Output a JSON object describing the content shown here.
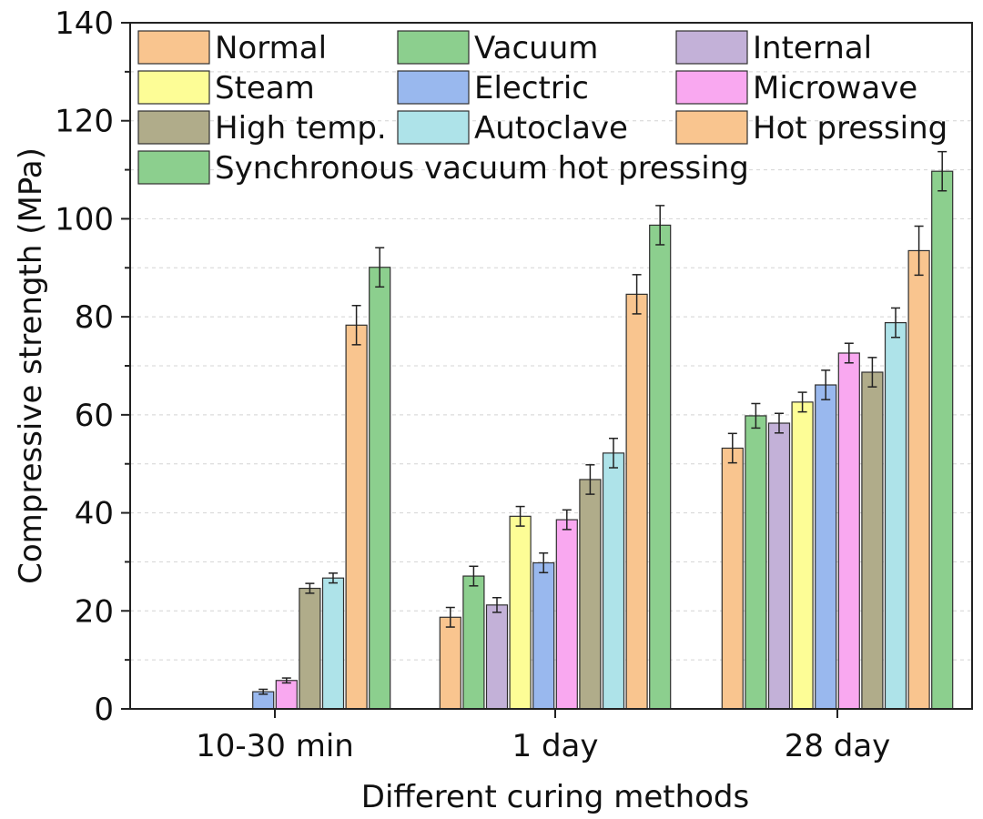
{
  "chart_data": {
    "type": "bar",
    "title": "",
    "xlabel": "Different curing methods",
    "ylabel": "Compressive strength (MPa)",
    "ylim": [
      0,
      140
    ],
    "yticks": [
      0,
      20,
      40,
      60,
      80,
      100,
      120,
      140
    ],
    "grid": "horizontal-dashed",
    "legend_position": "top-left",
    "categories": [
      "10-30 min",
      "1 day",
      "28 day"
    ],
    "series": [
      {
        "name": "Normal",
        "color": "#F9C58F",
        "values": [
          null,
          18.7,
          53.2
        ],
        "errors": [
          null,
          2.0,
          3.0
        ]
      },
      {
        "name": "Vacuum",
        "color": "#8CCF8E",
        "values": [
          null,
          27.1,
          59.8
        ],
        "errors": [
          null,
          2.0,
          2.5
        ]
      },
      {
        "name": "Internal",
        "color": "#C3B1D8",
        "values": [
          null,
          21.2,
          58.3
        ],
        "errors": [
          null,
          1.5,
          2.0
        ]
      },
      {
        "name": "Steam",
        "color": "#FDFD96",
        "values": [
          null,
          39.3,
          62.6
        ],
        "errors": [
          null,
          2.0,
          2.0
        ]
      },
      {
        "name": "Electric",
        "color": "#99B8EE",
        "values": [
          3.5,
          29.8,
          66.1
        ],
        "errors": [
          0.5,
          2.0,
          3.0
        ]
      },
      {
        "name": "Microwave",
        "color": "#F9A8F0",
        "values": [
          5.8,
          38.6,
          72.6
        ],
        "errors": [
          0.5,
          2.0,
          2.0
        ]
      },
      {
        "name": "High temp.",
        "color": "#B0AC8A",
        "values": [
          24.6,
          46.8,
          68.7
        ],
        "errors": [
          1.0,
          3.0,
          3.0
        ]
      },
      {
        "name": "Autoclave",
        "color": "#AEE3E9",
        "values": [
          26.7,
          52.2,
          78.8
        ],
        "errors": [
          1.0,
          3.0,
          3.0
        ]
      },
      {
        "name": "Hot pressing",
        "color": "#F9C58F",
        "values": [
          78.3,
          84.6,
          93.5
        ],
        "errors": [
          4.0,
          4.0,
          5.0
        ]
      },
      {
        "name": "Synchronous vacuum hot pressing",
        "color": "#8CCF8E",
        "values": [
          90.1,
          98.7,
          109.7
        ],
        "errors": [
          4.0,
          4.0,
          4.0
        ]
      }
    ]
  }
}
